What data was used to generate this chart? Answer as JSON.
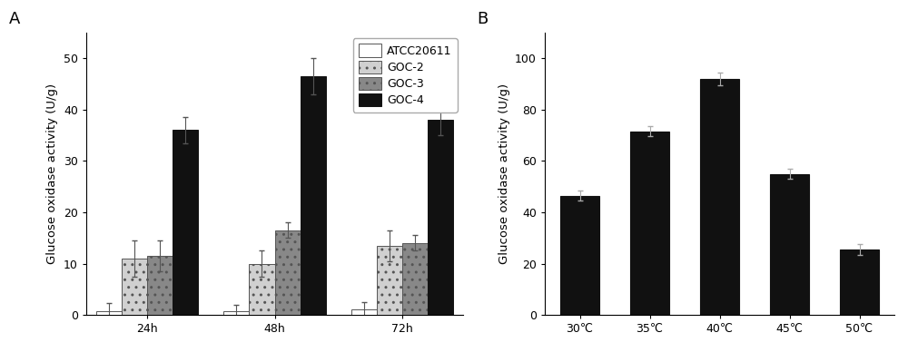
{
  "panel_A": {
    "groups": [
      "24h",
      "48h",
      "72h"
    ],
    "series": [
      {
        "label": "ATCC20611",
        "values": [
          0.8,
          0.8,
          1.0
        ],
        "errors": [
          1.5,
          1.2,
          1.5
        ],
        "color": "white",
        "edgecolor": "#555555",
        "hatch": ""
      },
      {
        "label": "GOC-2",
        "values": [
          11.0,
          10.0,
          13.5
        ],
        "errors": [
          3.5,
          2.5,
          3.0
        ],
        "color": "#d0d0d0",
        "edgecolor": "#555555",
        "hatch": ".."
      },
      {
        "label": "GOC-3",
        "values": [
          11.5,
          16.5,
          14.0
        ],
        "errors": [
          3.0,
          1.5,
          1.5
        ],
        "color": "#888888",
        "edgecolor": "#555555",
        "hatch": ".."
      },
      {
        "label": "GOC-4",
        "values": [
          36.0,
          46.5,
          38.0
        ],
        "errors": [
          2.5,
          3.5,
          3.0
        ],
        "color": "#111111",
        "edgecolor": "#111111",
        "hatch": ""
      }
    ],
    "ylabel": "Glucose oxidase activity (U/g)",
    "ylim": [
      0,
      55
    ],
    "yticks": [
      0,
      10,
      20,
      30,
      40,
      50
    ],
    "bar_width": 0.2,
    "group_positions": [
      0.0,
      1.0,
      2.0
    ]
  },
  "panel_B": {
    "categories": [
      "30℃",
      "35℃",
      "40℃",
      "45℃",
      "50℃"
    ],
    "values": [
      46.5,
      71.5,
      92.0,
      55.0,
      25.5
    ],
    "errors": [
      2.0,
      2.0,
      2.5,
      2.0,
      2.0
    ],
    "color": "#111111",
    "edgecolor": "#111111",
    "ylabel": "Glucose oxidase activity (U/g)",
    "ylim": [
      0,
      110
    ],
    "yticks": [
      0,
      20,
      40,
      60,
      80,
      100
    ],
    "bar_width": 0.55
  },
  "background_color": "#ffffff",
  "label_A": "A",
  "label_B": "B",
  "fontsize_axis_label": 9.5,
  "fontsize_tick": 9,
  "fontsize_legend": 9,
  "fontsize_panel_label": 13
}
